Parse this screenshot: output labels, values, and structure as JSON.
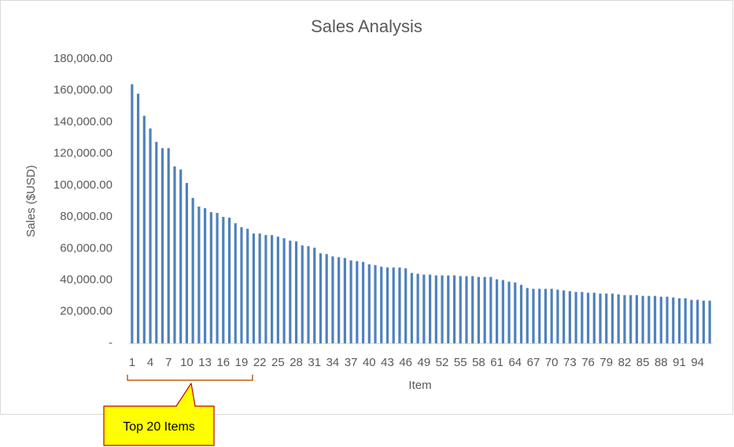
{
  "chart_data": {
    "type": "bar",
    "title": "Sales Analysis",
    "x_label": "Item",
    "y_label": "Sales ($USD)",
    "annotation": "Top 20 Items",
    "color": "#4f81bd",
    "grid": false,
    "categories": [
      "1",
      null,
      null,
      "4",
      null,
      null,
      "7",
      null,
      null,
      "10",
      null,
      null,
      "13",
      null,
      null,
      "16",
      null,
      null,
      "19",
      null,
      null,
      "22",
      null,
      null,
      "25",
      null,
      null,
      "28",
      null,
      null,
      "31",
      null,
      null,
      "34",
      null,
      null,
      "37",
      null,
      null,
      "40",
      null,
      null,
      "43",
      null,
      null,
      "46",
      null,
      null,
      "49",
      null,
      null,
      "52",
      null,
      null,
      "55",
      null,
      null,
      "58",
      null,
      null,
      "61",
      null,
      null,
      "64",
      null,
      null,
      "67",
      null,
      null,
      "70",
      null,
      null,
      "73",
      null,
      null,
      "76",
      null,
      null,
      "79",
      null,
      null,
      "82",
      null,
      null,
      "85",
      null,
      null,
      "88",
      null,
      null,
      "91",
      null,
      null,
      "94",
      null,
      null
    ],
    "values": [
      164000,
      158000,
      144000,
      136000,
      127500,
      123500,
      123500,
      112000,
      110000,
      101500,
      92000,
      86500,
      85500,
      83000,
      82500,
      80000,
      79500,
      76000,
      73500,
      72500,
      69500,
      69500,
      68500,
      68500,
      67500,
      66500,
      65000,
      64500,
      62000,
      61500,
      60500,
      57000,
      56500,
      55000,
      54500,
      54000,
      52500,
      52000,
      51500,
      50000,
      49500,
      48500,
      48000,
      48000,
      48000,
      47500,
      44500,
      44000,
      43500,
      43500,
      43000,
      43000,
      43000,
      43000,
      42500,
      42500,
      42500,
      42000,
      42000,
      42000,
      40500,
      40000,
      39000,
      38500,
      37000,
      35000,
      34500,
      34500,
      34500,
      34500,
      34000,
      33500,
      33000,
      32500,
      32500,
      32000,
      32000,
      31500,
      31500,
      31500,
      31000,
      30500,
      30500,
      30500,
      30000,
      30000,
      30000,
      29500,
      29500,
      29000,
      28500,
      28500,
      27500,
      27500,
      27000,
      27000
    ],
    "ylim": [
      0,
      180000
    ],
    "yticks": [
      {
        "value": 0,
        "label": "-"
      },
      {
        "value": 20000,
        "label": "20,000.00"
      },
      {
        "value": 40000,
        "label": "40,000.00"
      },
      {
        "value": 60000,
        "label": "60,000.00"
      },
      {
        "value": 80000,
        "label": "80,000.00"
      },
      {
        "value": 100000,
        "label": "100,000.00"
      },
      {
        "value": 120000,
        "label": "120,000.00"
      },
      {
        "value": 140000,
        "label": "140,000.00"
      },
      {
        "value": 160000,
        "label": "160,000.00"
      },
      {
        "value": 180000,
        "label": "180,000.00"
      }
    ]
  }
}
